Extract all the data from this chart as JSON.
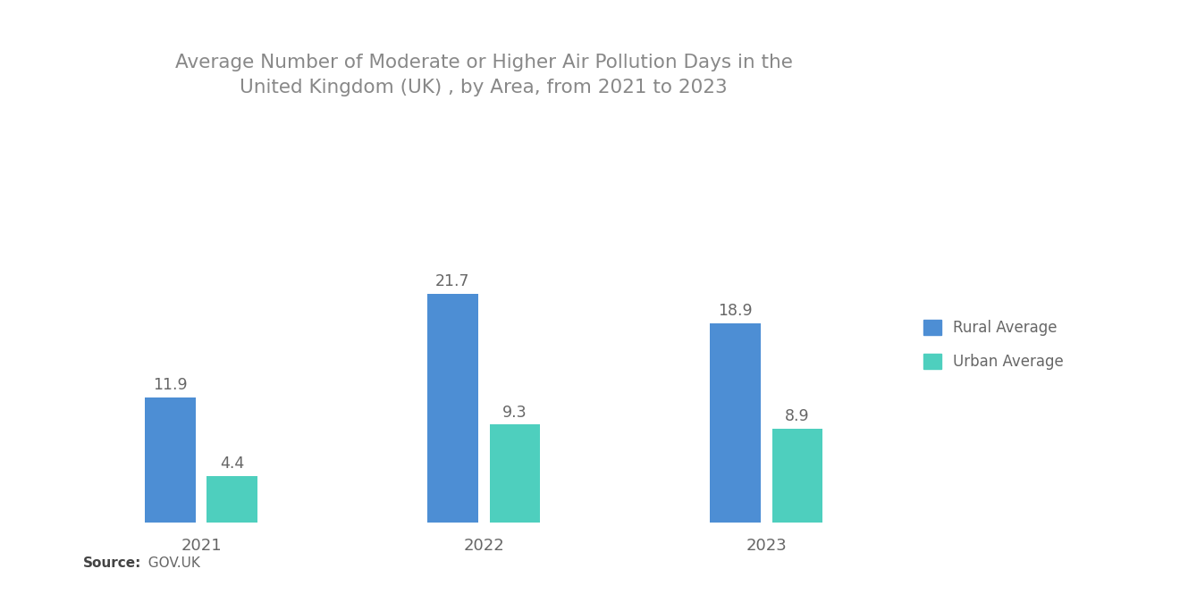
{
  "title": "Average Number of Moderate or Higher Air Pollution Days in the\nUnited Kingdom (UK) , by Area, from 2021 to 2023",
  "years": [
    "2021",
    "2022",
    "2023"
  ],
  "rural": [
    11.9,
    21.7,
    18.9
  ],
  "urban": [
    4.4,
    9.3,
    8.9
  ],
  "rural_color": "#4D8ED4",
  "urban_color": "#4ECFBE",
  "background_color": "#FFFFFF",
  "title_color": "#888888",
  "label_color": "#666666",
  "source_bold": "Source:",
  "source_rest": "  GOV.UK",
  "legend_rural": "Rural Average",
  "legend_urban": "Urban Average",
  "bar_width": 0.18,
  "ylim": [
    0,
    27
  ],
  "title_fontsize": 15.5,
  "label_fontsize": 12.5,
  "tick_fontsize": 13,
  "source_fontsize": 11,
  "legend_fontsize": 12
}
